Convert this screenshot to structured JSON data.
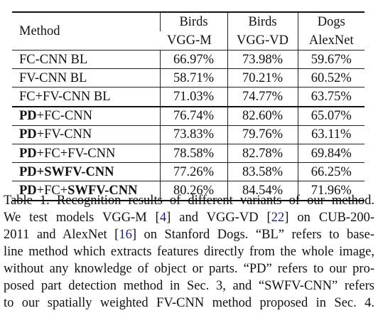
{
  "table": {
    "header": {
      "method": "Method",
      "columns": [
        {
          "line1": "Birds",
          "line2": "VGG-M"
        },
        {
          "line1": "Birds",
          "line2": "VGG-VD"
        },
        {
          "line1": "Dogs",
          "line2": "AlexNet"
        }
      ]
    },
    "rows": [
      {
        "pd": "",
        "method": "FC-CNN BL",
        "vals": [
          "66.97%",
          "73.98%",
          "59.67%"
        ]
      },
      {
        "pd": "",
        "method": "FV-CNN BL",
        "vals": [
          "58.71%",
          "70.21%",
          "60.52%"
        ]
      },
      {
        "pd": "",
        "method": "FC+FV-CNN BL",
        "vals": [
          "71.03%",
          "74.77%",
          "63.75%"
        ]
      },
      {
        "pd": "PD",
        "method": "+FC-CNN",
        "vals": [
          "76.74%",
          "82.60%",
          "65.07%"
        ]
      },
      {
        "pd": "PD",
        "method": "+FV-CNN",
        "vals": [
          "73.83%",
          "79.76%",
          "63.11%"
        ]
      },
      {
        "pd": "PD",
        "method": "+FC+FV-CNN",
        "vals": [
          "78.58%",
          "82.78%",
          "69.84%"
        ]
      },
      {
        "pd": "PD",
        "method": "+SWFV-CNN",
        "vals": [
          "77.26%",
          "83.58%",
          "66.25%"
        ]
      },
      {
        "pd": "PD",
        "method": "+FC+",
        "method_bold": "SWFV-CNN",
        "vals": [
          "80.26%",
          "84.54%",
          "71.96%"
        ]
      }
    ]
  },
  "caption": {
    "lines": [
      [
        "Table 1. Recognition results of different variants of our method."
      ],
      [
        "We test models VGG-M [",
        "4",
        "] and VGG-VD [",
        "22",
        "] on CUB-200-"
      ],
      [
        "2011 and AlexNet [",
        "16",
        "] on Stanford Dogs.  “BL” refers to base-"
      ],
      [
        "line method which extracts features directly from the whole image,"
      ],
      [
        "without any knowledge of object or parts.  “PD” refers to our pro-"
      ],
      [
        "posed part detection method in Sec. 3, and “SWFV-CNN” refers"
      ],
      [
        "to our spatially weighted FV-CNN method proposed in Sec. 4."
      ]
    ]
  }
}
